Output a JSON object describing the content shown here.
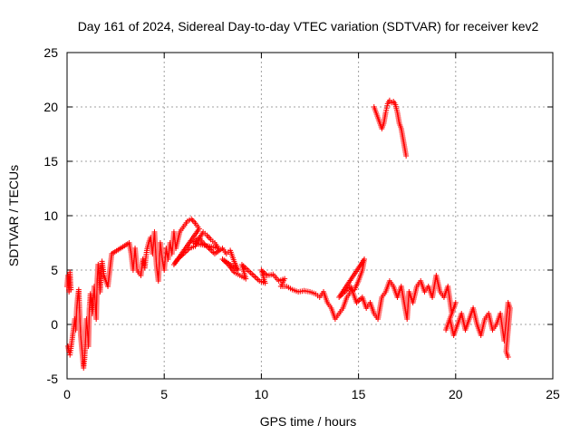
{
  "chart_data": {
    "type": "scatter",
    "title": "Day 161 of 2024, Sidereal Day-to-day VTEC variation (SDTVAR) for receiver kev2",
    "xlabel": "GPS time / hours",
    "ylabel": "SDTVAR / TECUs",
    "xlim": [
      0,
      25
    ],
    "ylim": [
      -5,
      25
    ],
    "xticks": [
      0,
      5,
      10,
      15,
      20,
      25
    ],
    "yticks": [
      -5,
      0,
      5,
      10,
      15,
      20,
      25
    ],
    "grid": true,
    "marker": "+",
    "color": "#ff0000",
    "series": [
      {
        "name": "main",
        "points": [
          [
            0.0,
            3.5
          ],
          [
            0.05,
            4.5
          ],
          [
            0.1,
            3.0
          ],
          [
            0.15,
            4.8
          ],
          [
            0.2,
            3.2
          ],
          [
            0.05,
            -2.0
          ],
          [
            0.1,
            -2.5
          ],
          [
            0.15,
            -2.8
          ],
          [
            0.2,
            -2.2
          ],
          [
            0.4,
            0.5
          ],
          [
            0.45,
            -0.5
          ],
          [
            0.5,
            1.5
          ],
          [
            0.55,
            2.5
          ],
          [
            0.6,
            3.2
          ],
          [
            0.65,
            1.0
          ],
          [
            0.7,
            -1.0
          ],
          [
            0.75,
            -2.0
          ],
          [
            0.8,
            -3.0
          ],
          [
            0.85,
            -4.0
          ],
          [
            0.9,
            -3.2
          ],
          [
            0.95,
            -1.5
          ],
          [
            1.0,
            0.5
          ],
          [
            1.05,
            -0.5
          ],
          [
            1.1,
            -2.0
          ],
          [
            1.15,
            1.5
          ],
          [
            1.2,
            2.8
          ],
          [
            1.3,
            1.0
          ],
          [
            1.4,
            3.5
          ],
          [
            1.5,
            0.5
          ],
          [
            1.55,
            4.0
          ],
          [
            1.6,
            5.5
          ],
          [
            1.7,
            3.0
          ],
          [
            1.8,
            5.8
          ],
          [
            1.9,
            4.5
          ],
          [
            2.0,
            4.0
          ],
          [
            2.1,
            3.5
          ],
          [
            2.2,
            5.0
          ],
          [
            2.3,
            6.5
          ],
          [
            3.2,
            7.5
          ],
          [
            3.3,
            6.5
          ],
          [
            3.4,
            5.0
          ],
          [
            3.5,
            7.0
          ],
          [
            3.6,
            5.0
          ],
          [
            3.8,
            4.5
          ],
          [
            3.9,
            6.0
          ],
          [
            4.0,
            5.2
          ],
          [
            4.1,
            6.8
          ],
          [
            4.2,
            7.5
          ],
          [
            4.3,
            8.0
          ],
          [
            4.4,
            6.5
          ],
          [
            4.5,
            8.5
          ],
          [
            4.6,
            5.5
          ],
          [
            4.7,
            4.0
          ],
          [
            4.8,
            7.5
          ],
          [
            4.9,
            6.0
          ],
          [
            5.0,
            5.0
          ],
          [
            5.1,
            7.0
          ],
          [
            5.2,
            6.0
          ],
          [
            5.3,
            7.5
          ],
          [
            5.4,
            6.5
          ],
          [
            5.5,
            8.5
          ],
          [
            5.6,
            7.0
          ],
          [
            5.8,
            8.5
          ],
          [
            6.0,
            9.0
          ],
          [
            6.2,
            9.5
          ],
          [
            6.4,
            9.7
          ],
          [
            6.6,
            9.3
          ],
          [
            6.8,
            8.8
          ],
          [
            5.5,
            5.5
          ],
          [
            5.7,
            6.0
          ],
          [
            6.0,
            6.5
          ],
          [
            6.3,
            7.0
          ],
          [
            6.6,
            7.2
          ],
          [
            7.0,
            8.5
          ],
          [
            7.2,
            8.2
          ],
          [
            7.4,
            7.8
          ],
          [
            7.6,
            7.5
          ],
          [
            7.8,
            7.0
          ],
          [
            6.5,
            7.5
          ],
          [
            6.8,
            8.0
          ],
          [
            7.0,
            7.5
          ],
          [
            7.3,
            7.0
          ],
          [
            7.6,
            6.5
          ],
          [
            8.0,
            7.0
          ],
          [
            8.2,
            6.5
          ],
          [
            8.4,
            6.8
          ],
          [
            8.6,
            5.8
          ],
          [
            8.8,
            5.0
          ],
          [
            8.0,
            6.0
          ],
          [
            8.3,
            5.5
          ],
          [
            8.6,
            4.8
          ],
          [
            8.9,
            4.5
          ],
          [
            9.2,
            4.2
          ],
          [
            9.0,
            5.5
          ],
          [
            9.3,
            5.0
          ],
          [
            9.6,
            4.5
          ],
          [
            9.9,
            4.0
          ],
          [
            10.2,
            3.8
          ],
          [
            10.0,
            5.0
          ],
          [
            10.3,
            4.5
          ],
          [
            10.6,
            4.6
          ],
          [
            10.9,
            4.0
          ],
          [
            11.2,
            4.2
          ],
          [
            11.0,
            3.5
          ],
          [
            11.3,
            3.5
          ],
          [
            11.6,
            3.2
          ],
          [
            11.9,
            3.0
          ],
          [
            12.2,
            3.1
          ],
          [
            12.5,
            3.0
          ],
          [
            12.8,
            2.8
          ],
          [
            13.0,
            2.5
          ],
          [
            13.2,
            3.0
          ],
          [
            13.4,
            2.0
          ],
          [
            13.6,
            1.5
          ],
          [
            13.8,
            0.5
          ],
          [
            14.0,
            1.0
          ],
          [
            14.2,
            1.5
          ],
          [
            14.4,
            2.5
          ],
          [
            14.6,
            3.0
          ],
          [
            14.8,
            3.2
          ],
          [
            15.0,
            4.0
          ],
          [
            15.2,
            5.0
          ],
          [
            15.3,
            6.0
          ],
          [
            14.0,
            2.5
          ],
          [
            14.3,
            3.0
          ],
          [
            14.6,
            3.5
          ],
          [
            14.9,
            2.0
          ],
          [
            15.2,
            2.5
          ],
          [
            15.4,
            1.5
          ],
          [
            15.6,
            2.0
          ],
          [
            15.8,
            1.0
          ],
          [
            16.0,
            0.5
          ],
          [
            16.2,
            2.5
          ],
          [
            16.4,
            3.0
          ],
          [
            16.6,
            4.0
          ],
          [
            16.8,
            3.5
          ],
          [
            17.0,
            2.5
          ],
          [
            17.2,
            3.5
          ],
          [
            17.4,
            1.5
          ],
          [
            17.5,
            0.5
          ],
          [
            17.6,
            3.0
          ],
          [
            17.8,
            2.0
          ],
          [
            18.0,
            3.5
          ],
          [
            18.2,
            4.0
          ],
          [
            18.4,
            3.0
          ],
          [
            18.6,
            3.5
          ],
          [
            18.8,
            2.5
          ],
          [
            19.0,
            4.5
          ],
          [
            19.2,
            3.0
          ],
          [
            19.4,
            2.5
          ],
          [
            19.6,
            3.5
          ],
          [
            19.8,
            1.0
          ],
          [
            20.0,
            2.0
          ],
          [
            19.5,
            -0.5
          ],
          [
            19.7,
            0.5
          ],
          [
            19.9,
            -1.0
          ],
          [
            20.1,
            0.0
          ],
          [
            20.3,
            1.0
          ],
          [
            20.5,
            -0.5
          ],
          [
            20.7,
            0.5
          ],
          [
            20.9,
            1.5
          ],
          [
            21.1,
            0.0
          ],
          [
            21.3,
            -1.0
          ],
          [
            21.5,
            0.5
          ],
          [
            21.7,
            1.0
          ],
          [
            21.9,
            -0.5
          ],
          [
            22.1,
            0.0
          ],
          [
            22.3,
            1.0
          ],
          [
            22.5,
            -1.5
          ],
          [
            22.7,
            2.0
          ],
          [
            22.8,
            1.5
          ],
          [
            22.6,
            -2.5
          ],
          [
            22.7,
            -3.0
          ]
        ]
      },
      {
        "name": "upper",
        "points": [
          [
            15.8,
            20.0
          ],
          [
            15.9,
            19.5
          ],
          [
            16.0,
            19.0
          ],
          [
            16.1,
            18.5
          ],
          [
            16.2,
            18.0
          ],
          [
            16.3,
            18.5
          ],
          [
            16.4,
            19.5
          ],
          [
            16.5,
            20.3
          ],
          [
            16.6,
            20.6
          ],
          [
            16.7,
            20.4
          ],
          [
            16.8,
            20.5
          ],
          [
            16.9,
            20.2
          ],
          [
            17.0,
            19.5
          ],
          [
            17.1,
            18.5
          ],
          [
            17.2,
            18.0
          ],
          [
            17.3,
            17.0
          ],
          [
            17.35,
            16.5
          ],
          [
            17.4,
            16.0
          ],
          [
            17.45,
            15.5
          ]
        ]
      }
    ]
  }
}
